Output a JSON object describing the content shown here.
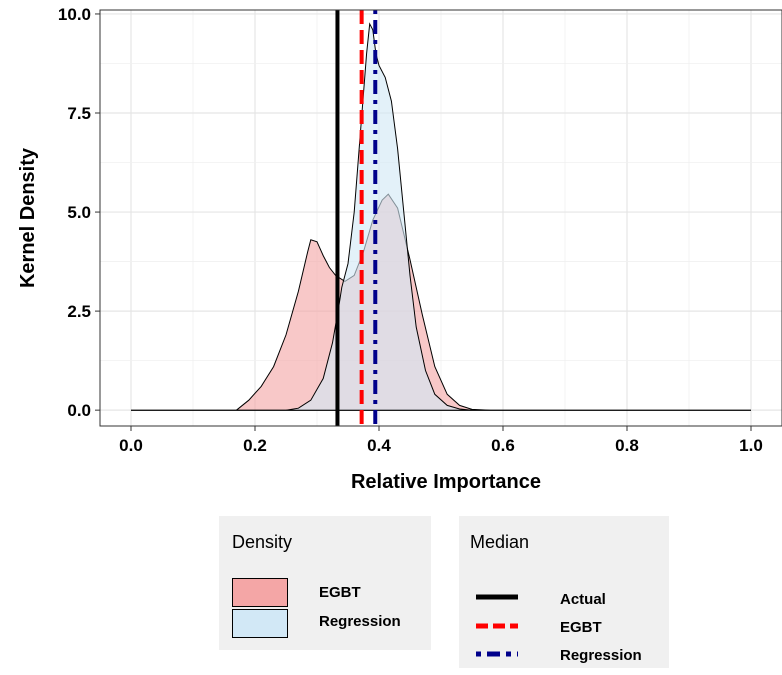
{
  "chart_data": {
    "type": "area",
    "xlabel": "Relative Importance",
    "ylabel": "Kernel Density",
    "xlim": [
      -0.05,
      1.05
    ],
    "ylim": [
      -0.4,
      10.1
    ],
    "x_ticks": [
      "0.0",
      "0.2",
      "0.4",
      "0.6",
      "0.8",
      "1.0"
    ],
    "y_ticks": [
      "0.0",
      "2.5",
      "5.0",
      "7.5",
      "10.0"
    ],
    "grid": true,
    "series": [
      {
        "name": "EGBT",
        "color": "#f4a6a6",
        "points": [
          [
            0.0,
            0
          ],
          [
            0.17,
            0.0
          ],
          [
            0.19,
            0.25
          ],
          [
            0.21,
            0.6
          ],
          [
            0.23,
            1.1
          ],
          [
            0.25,
            1.9
          ],
          [
            0.27,
            3.0
          ],
          [
            0.285,
            4.0
          ],
          [
            0.29,
            4.3
          ],
          [
            0.3,
            4.25
          ],
          [
            0.31,
            3.9
          ],
          [
            0.32,
            3.6
          ],
          [
            0.33,
            3.4
          ],
          [
            0.345,
            3.25
          ],
          [
            0.36,
            3.4
          ],
          [
            0.375,
            4.0
          ],
          [
            0.39,
            4.8
          ],
          [
            0.405,
            5.3
          ],
          [
            0.415,
            5.45
          ],
          [
            0.43,
            5.1
          ],
          [
            0.45,
            3.8
          ],
          [
            0.47,
            2.4
          ],
          [
            0.49,
            1.1
          ],
          [
            0.51,
            0.4
          ],
          [
            0.53,
            0.12
          ],
          [
            0.55,
            0.02
          ],
          [
            0.58,
            0.0
          ],
          [
            1.0,
            0
          ]
        ]
      },
      {
        "name": "Regression",
        "color": "#d2e8f6",
        "points": [
          [
            0.0,
            0
          ],
          [
            0.25,
            0.0
          ],
          [
            0.27,
            0.05
          ],
          [
            0.29,
            0.25
          ],
          [
            0.31,
            0.8
          ],
          [
            0.325,
            1.7
          ],
          [
            0.335,
            2.6
          ],
          [
            0.34,
            3.1
          ],
          [
            0.35,
            3.7
          ],
          [
            0.36,
            5.0
          ],
          [
            0.37,
            7.0
          ],
          [
            0.38,
            9.0
          ],
          [
            0.385,
            9.75
          ],
          [
            0.39,
            9.6
          ],
          [
            0.395,
            9.0
          ],
          [
            0.4,
            8.7
          ],
          [
            0.41,
            8.4
          ],
          [
            0.42,
            7.8
          ],
          [
            0.43,
            6.6
          ],
          [
            0.44,
            5.0
          ],
          [
            0.45,
            3.4
          ],
          [
            0.46,
            2.1
          ],
          [
            0.475,
            1.0
          ],
          [
            0.49,
            0.4
          ],
          [
            0.51,
            0.12
          ],
          [
            0.53,
            0.03
          ],
          [
            0.55,
            0.0
          ],
          [
            1.0,
            0
          ]
        ]
      }
    ],
    "vlines": [
      {
        "name": "Actual",
        "x": 0.333,
        "color": "#000000",
        "style": "solid"
      },
      {
        "name": "EGBT",
        "x": 0.372,
        "color": "#ff0000",
        "style": "dashed"
      },
      {
        "name": "Regression",
        "x": 0.394,
        "color": "#00008b",
        "style": "dotdash"
      }
    ],
    "legend_position": "bottom",
    "legends": {
      "density": {
        "title": "Density",
        "items": [
          "EGBT",
          "Regression"
        ]
      },
      "median": {
        "title": "Median",
        "items": [
          "Actual",
          "EGBT",
          "Regression"
        ]
      }
    }
  }
}
